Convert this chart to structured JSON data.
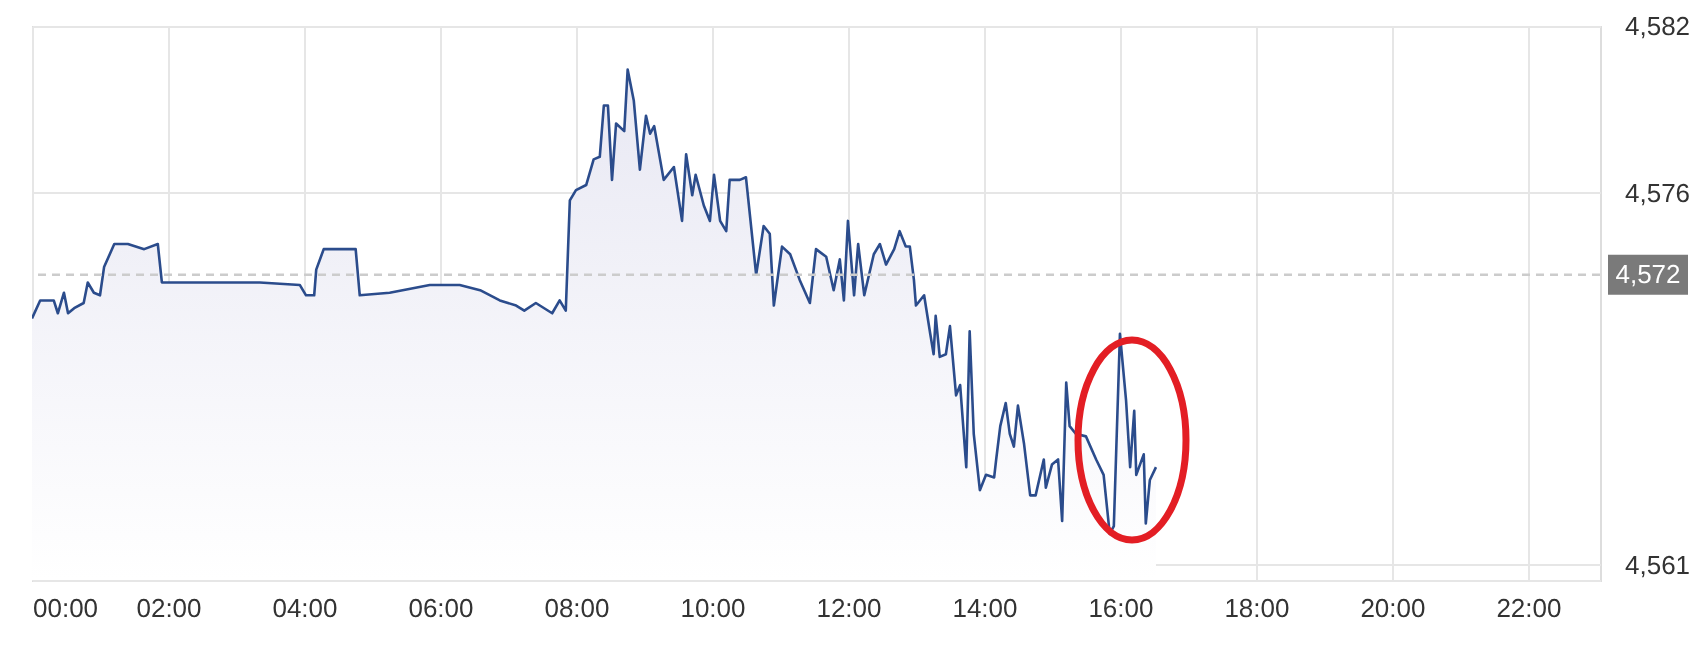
{
  "chart_data": {
    "type": "area",
    "x": [
      0.0,
      0.12,
      0.32,
      0.38,
      0.47,
      0.53,
      0.62,
      0.76,
      0.82,
      0.91,
      1.0,
      1.06,
      1.21,
      1.41,
      1.65,
      1.85,
      1.91,
      2.76,
      3.35,
      3.94,
      4.03,
      4.15,
      4.18,
      4.29,
      4.76,
      4.82,
      5.26,
      5.85,
      6.29,
      6.59,
      6.88,
      7.12,
      7.24,
      7.41,
      7.65,
      7.76,
      7.85,
      7.91,
      8.0,
      8.15,
      8.26,
      8.35,
      8.41,
      8.47,
      8.53,
      8.59,
      8.71,
      8.76,
      8.85,
      8.94,
      9.03,
      9.09,
      9.15,
      9.29,
      9.44,
      9.56,
      9.62,
      9.71,
      9.76,
      9.88,
      9.97,
      10.03,
      10.12,
      10.21,
      10.26,
      10.41,
      10.5,
      10.65,
      10.76,
      10.85,
      10.91,
      11.03,
      11.15,
      11.29,
      11.44,
      11.53,
      11.68,
      11.79,
      11.88,
      11.94,
      12.0,
      12.09,
      12.15,
      12.24,
      12.38,
      12.47,
      12.56,
      12.68,
      12.76,
      12.85,
      12.91,
      12.97,
      13.0,
      13.12,
      13.21,
      13.26,
      13.29,
      13.35,
      13.44,
      13.5,
      13.59,
      13.65,
      13.74,
      13.79,
      13.85,
      13.94,
      14.03,
      14.15,
      14.18,
      14.24,
      14.32,
      14.38,
      14.44,
      14.5,
      14.59,
      14.68,
      14.76,
      14.88,
      14.91,
      15.0,
      15.09,
      15.15,
      15.21,
      15.26,
      15.35,
      15.5,
      15.65,
      15.76,
      15.85,
      15.91,
      16.0,
      16.09,
      16.15,
      16.21,
      16.24,
      16.35,
      16.38,
      16.44,
      16.53
    ],
    "series": [
      {
        "color": "#2b4c8c",
        "values": [
          4570.6,
          4571.3,
          4571.3,
          4570.8,
          4571.6,
          4570.8,
          4571.0,
          4571.2,
          4572.0,
          4571.6,
          4571.5,
          4572.6,
          4573.5,
          4573.5,
          4573.3,
          4573.5,
          4572.0,
          4572.0,
          4572.0,
          4571.9,
          4571.5,
          4571.5,
          4572.5,
          4573.3,
          4573.3,
          4571.5,
          4571.6,
          4571.9,
          4571.9,
          4571.7,
          4571.3,
          4571.1,
          4570.9,
          4571.2,
          4570.8,
          4571.3,
          4570.9,
          4575.2,
          4575.6,
          4575.8,
          4576.8,
          4576.9,
          4578.9,
          4578.9,
          4576.0,
          4578.2,
          4577.9,
          4580.3,
          4579.1,
          4576.4,
          4578.5,
          4577.8,
          4578.1,
          4576.0,
          4576.5,
          4574.4,
          4577.0,
          4575.4,
          4576.2,
          4575.0,
          4574.4,
          4576.2,
          4574.4,
          4574.0,
          4576.0,
          4576.0,
          4576.1,
          4572.3,
          4574.2,
          4573.9,
          4571.1,
          4573.4,
          4573.1,
          4572.1,
          4571.2,
          4573.3,
          4573.0,
          4571.7,
          4572.9,
          4571.3,
          4574.4,
          4571.5,
          4573.5,
          4571.5,
          4573.1,
          4573.5,
          4572.7,
          4573.3,
          4574.0,
          4573.4,
          4573.4,
          4572.1,
          4571.1,
          4571.5,
          4570.0,
          4569.2,
          4570.7,
          4569.1,
          4569.2,
          4570.3,
          4567.6,
          4568.0,
          4564.8,
          4570.1,
          4566.1,
          4563.9,
          4564.5,
          4564.4,
          4565.1,
          4566.4,
          4567.3,
          4566.1,
          4565.6,
          4567.2,
          4565.7,
          4563.7,
          4563.7,
          4565.1,
          4564.0,
          4564.9,
          4565.1,
          4562.7,
          4568.1,
          4566.4,
          4566.1,
          4566.0,
          4565.1,
          4564.5,
          4562.2,
          4562.5,
          4570.0,
          4567.4,
          4564.8,
          4567.0,
          4564.5,
          4565.3,
          4562.6,
          4564.3,
          4564.8
        ]
      }
    ],
    "xlim": [
      0,
      23.06
    ],
    "xticks": [
      {
        "value": 0,
        "label": "00:00"
      },
      {
        "value": 2,
        "label": "02:00"
      },
      {
        "value": 4,
        "label": "04:00"
      },
      {
        "value": 6,
        "label": "06:00"
      },
      {
        "value": 8,
        "label": "08:00"
      },
      {
        "value": 10,
        "label": "10:00"
      },
      {
        "value": 12,
        "label": "12:00"
      },
      {
        "value": 14,
        "label": "14:00"
      },
      {
        "value": 16,
        "label": "16:00"
      },
      {
        "value": 18,
        "label": "18:00"
      },
      {
        "value": 20,
        "label": "20:00"
      },
      {
        "value": 22,
        "label": "22:00"
      }
    ],
    "ylim": [
      4560.4,
      4582
    ],
    "yticks": [
      {
        "value": 4561,
        "label": "4,561"
      },
      {
        "value": 4575.5,
        "label": "4,576"
      },
      {
        "value": 4582,
        "label": "4,582"
      }
    ],
    "ref_lines": [
      {
        "axis": "y",
        "value": 4572.3,
        "label": "4,572",
        "color": "#cccccc",
        "line_style": "dashed"
      }
    ],
    "grid": true
  }
}
